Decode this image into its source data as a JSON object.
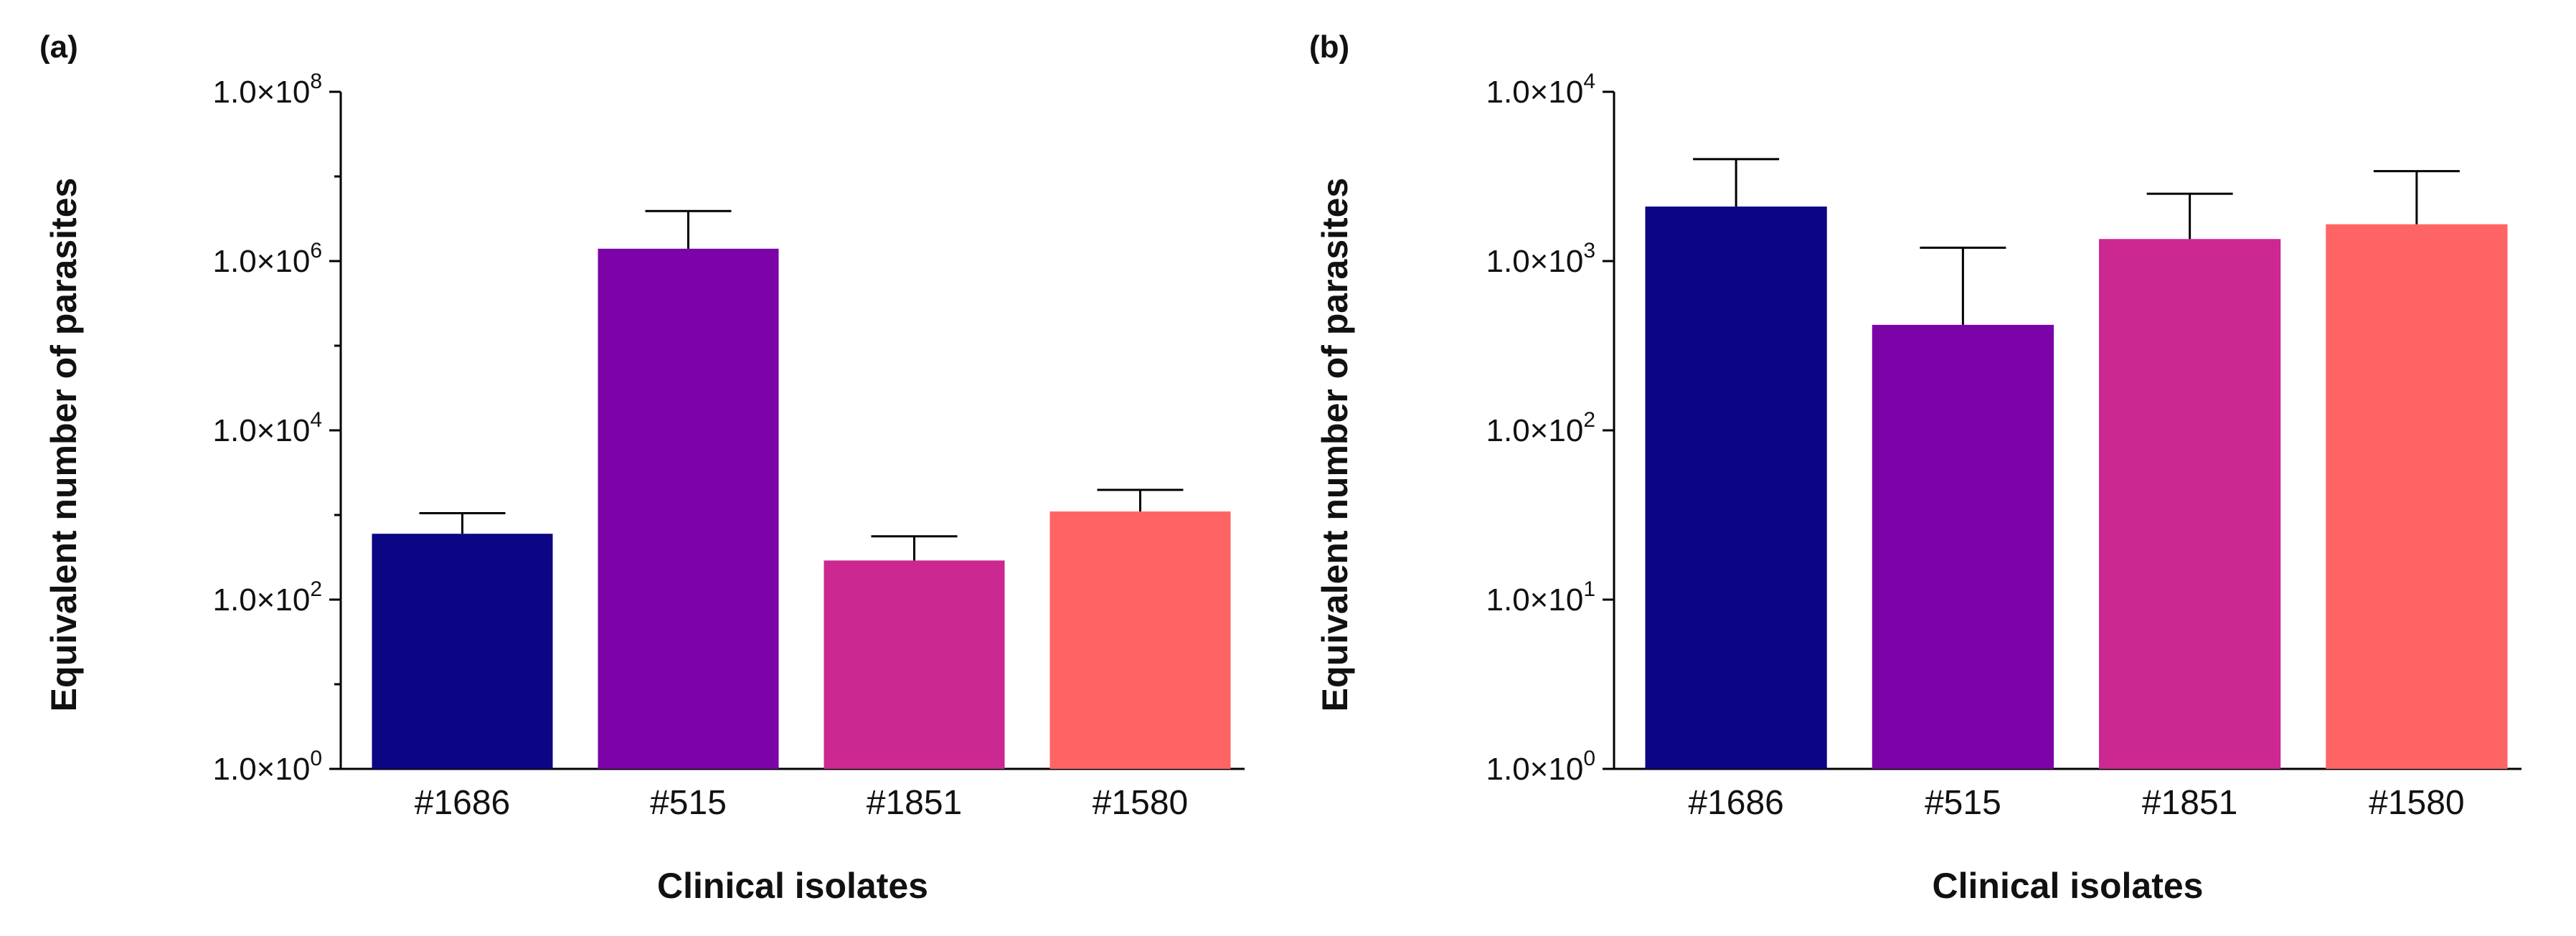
{
  "chart_data": [
    {
      "type": "bar",
      "panel_label": "(a)",
      "title": "",
      "xlabel": "Clinical isolates",
      "ylabel": "Equivalent number of parasites",
      "yscale": "log10",
      "ylim": [
        1,
        100000000
      ],
      "major_ticks": [
        {
          "value": 1,
          "mantissa": "1.0×10",
          "exp": "0"
        },
        {
          "value": 100,
          "mantissa": "1.0×10",
          "exp": "2"
        },
        {
          "value": 10000,
          "mantissa": "1.0×10",
          "exp": "4"
        },
        {
          "value": 1000000,
          "mantissa": "1.0×10",
          "exp": "6"
        },
        {
          "value": 100000000,
          "mantissa": "1.0×10",
          "exp": "8"
        }
      ],
      "minor_ticks": [
        10,
        1000,
        100000,
        10000000
      ],
      "categories": [
        "#1686",
        "#515",
        "#1851",
        "#1580"
      ],
      "values": [
        600,
        1400000,
        290,
        1100
      ],
      "error_upper": [
        1050,
        3900000,
        560,
        1980
      ],
      "colors": [
        "#0c0684",
        "#7b03a8",
        "#cb2892",
        "#fe6464"
      ]
    },
    {
      "type": "bar",
      "panel_label": "(b)",
      "title": "",
      "xlabel": "Clinical isolates",
      "ylabel": "Equivalent number of parasites",
      "yscale": "log10",
      "ylim": [
        1,
        10000
      ],
      "major_ticks": [
        {
          "value": 1,
          "mantissa": "1.0×10",
          "exp": "0"
        },
        {
          "value": 10,
          "mantissa": "1.0×10",
          "exp": "1"
        },
        {
          "value": 100,
          "mantissa": "1.0×10",
          "exp": "2"
        },
        {
          "value": 1000,
          "mantissa": "1.0×10",
          "exp": "3"
        },
        {
          "value": 10000,
          "mantissa": "1.0×10",
          "exp": "4"
        }
      ],
      "minor_ticks": [],
      "categories": [
        "#1686",
        "#515",
        "#1851",
        "#1580"
      ],
      "values": [
        2100,
        420,
        1350,
        1650
      ],
      "error_upper": [
        4000,
        1200,
        2500,
        3400
      ],
      "colors": [
        "#0c0684",
        "#7b03a8",
        "#cb2892",
        "#fe6464"
      ]
    }
  ]
}
